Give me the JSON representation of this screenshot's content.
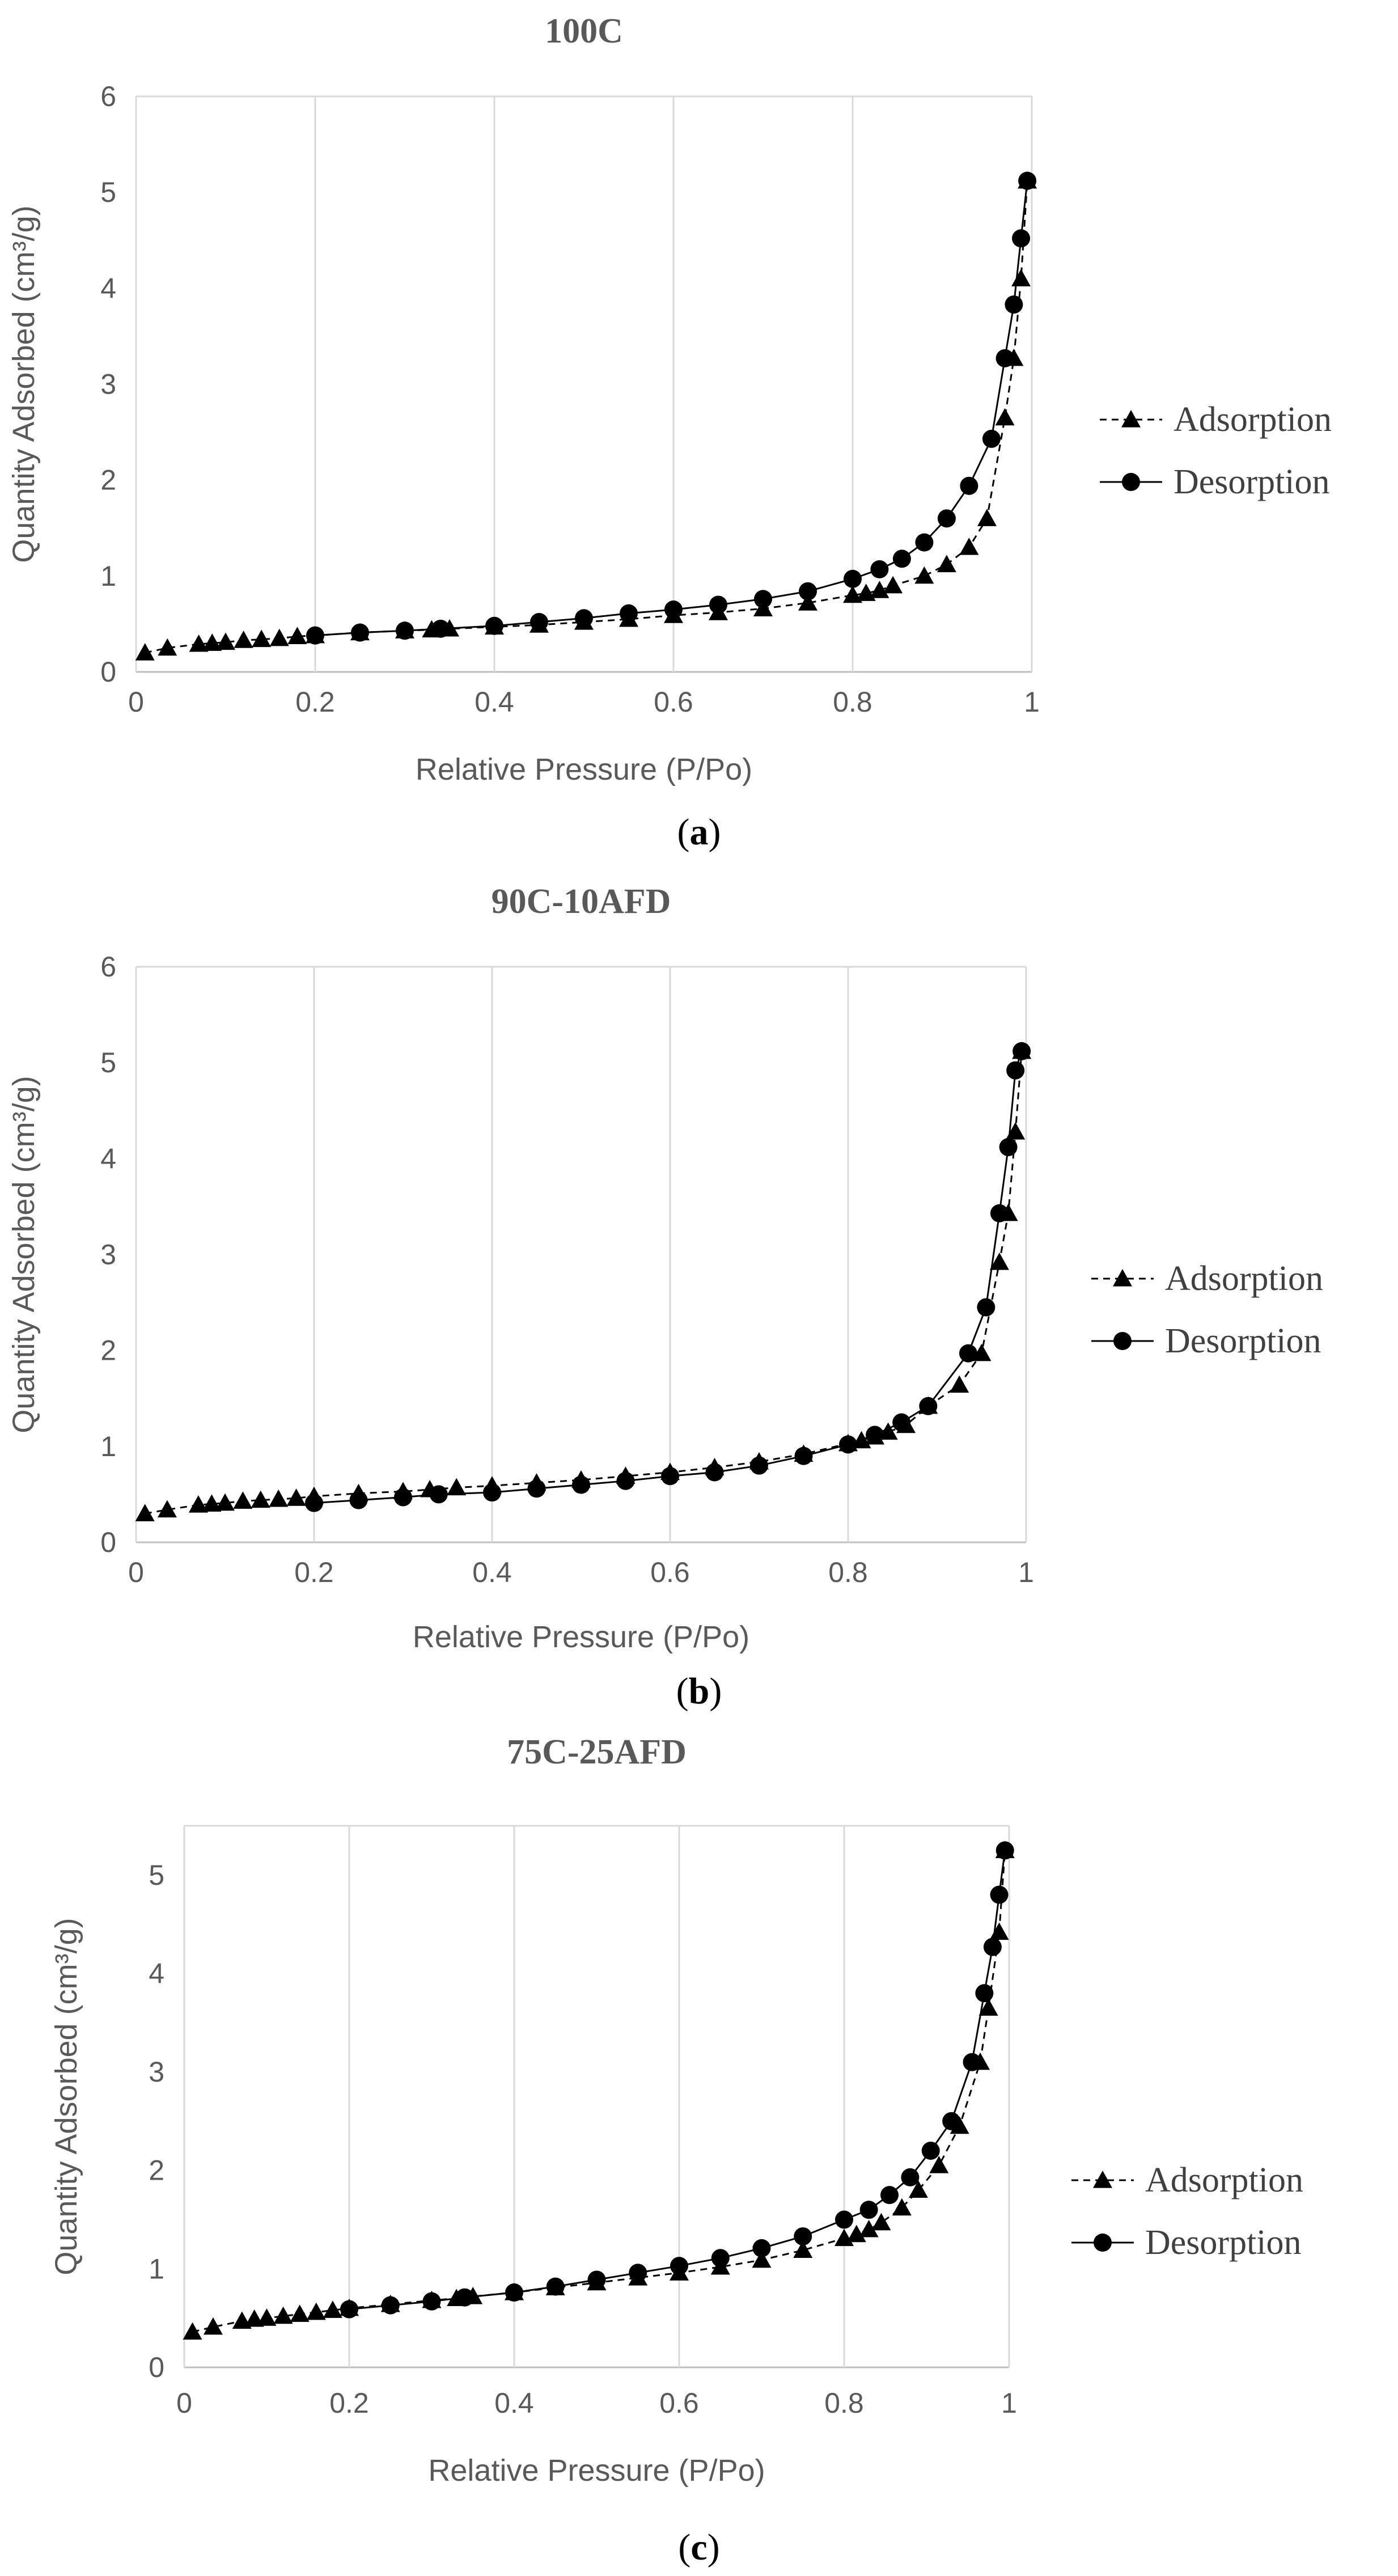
{
  "chart_data": [
    {
      "type": "line",
      "title": "100C",
      "caption": "a",
      "xlabel": "Relative Pressure (P/Po)",
      "ylabel": "Quantity Adsorbed (cm³/g)",
      "xlim": [
        0,
        1
      ],
      "ylim": [
        0,
        6
      ],
      "xticks": [
        "0",
        "0.2",
        "0.4",
        "0.6",
        "0.8",
        "1"
      ],
      "yticks": [
        "0",
        "1",
        "2",
        "3",
        "4",
        "5",
        "6"
      ],
      "grid": "vertical",
      "legend": "right",
      "series": [
        {
          "name": "Adsorption",
          "marker": "triangle",
          "line": "dashed",
          "points": [
            [
              0.01,
              0.2
            ],
            [
              0.035,
              0.25
            ],
            [
              0.07,
              0.29
            ],
            [
              0.085,
              0.3
            ],
            [
              0.1,
              0.31
            ],
            [
              0.12,
              0.33
            ],
            [
              0.14,
              0.34
            ],
            [
              0.16,
              0.35
            ],
            [
              0.18,
              0.37
            ],
            [
              0.2,
              0.38
            ],
            [
              0.25,
              0.41
            ],
            [
              0.3,
              0.43
            ],
            [
              0.33,
              0.44
            ],
            [
              0.35,
              0.45
            ],
            [
              0.4,
              0.47
            ],
            [
              0.45,
              0.49
            ],
            [
              0.5,
              0.52
            ],
            [
              0.55,
              0.55
            ],
            [
              0.6,
              0.59
            ],
            [
              0.65,
              0.62
            ],
            [
              0.7,
              0.66
            ],
            [
              0.75,
              0.72
            ],
            [
              0.8,
              0.8
            ],
            [
              0.815,
              0.82
            ],
            [
              0.83,
              0.85
            ],
            [
              0.845,
              0.9
            ],
            [
              0.88,
              1.0
            ],
            [
              0.905,
              1.12
            ],
            [
              0.93,
              1.3
            ],
            [
              0.95,
              1.6
            ],
            [
              0.97,
              2.65
            ],
            [
              0.98,
              3.27
            ],
            [
              0.988,
              4.1
            ],
            [
              0.995,
              5.12
            ]
          ]
        },
        {
          "name": "Desorption",
          "marker": "circle",
          "line": "solid",
          "points": [
            [
              0.995,
              5.12
            ],
            [
              0.988,
              4.52
            ],
            [
              0.98,
              3.83
            ],
            [
              0.97,
              3.27
            ],
            [
              0.955,
              2.43
            ],
            [
              0.93,
              1.94
            ],
            [
              0.905,
              1.6
            ],
            [
              0.88,
              1.35
            ],
            [
              0.855,
              1.18
            ],
            [
              0.83,
              1.07
            ],
            [
              0.8,
              0.97
            ],
            [
              0.75,
              0.84
            ],
            [
              0.7,
              0.76
            ],
            [
              0.65,
              0.7
            ],
            [
              0.6,
              0.65
            ],
            [
              0.55,
              0.61
            ],
            [
              0.5,
              0.56
            ],
            [
              0.45,
              0.52
            ],
            [
              0.4,
              0.48
            ],
            [
              0.34,
              0.45
            ],
            [
              0.3,
              0.43
            ],
            [
              0.25,
              0.41
            ],
            [
              0.2,
              0.38
            ]
          ]
        }
      ]
    },
    {
      "type": "line",
      "title": "90C-10AFD",
      "caption": "b",
      "xlabel": "Relative Pressure (P/Po)",
      "ylabel": "Quantity Adsorbed (cm³/g)",
      "xlim": [
        0,
        1
      ],
      "ylim": [
        0,
        6
      ],
      "xticks": [
        "0",
        "0.2",
        "0.4",
        "0.6",
        "0.8",
        "1"
      ],
      "yticks": [
        "0",
        "1",
        "2",
        "3",
        "4",
        "5",
        "6"
      ],
      "grid": "vertical",
      "legend": "right",
      "series": [
        {
          "name": "Adsorption",
          "marker": "triangle",
          "line": "dashed",
          "points": [
            [
              0.01,
              0.3
            ],
            [
              0.035,
              0.34
            ],
            [
              0.07,
              0.39
            ],
            [
              0.085,
              0.4
            ],
            [
              0.1,
              0.41
            ],
            [
              0.12,
              0.43
            ],
            [
              0.14,
              0.44
            ],
            [
              0.16,
              0.45
            ],
            [
              0.18,
              0.46
            ],
            [
              0.2,
              0.48
            ],
            [
              0.25,
              0.51
            ],
            [
              0.3,
              0.53
            ],
            [
              0.33,
              0.55
            ],
            [
              0.36,
              0.57
            ],
            [
              0.4,
              0.59
            ],
            [
              0.45,
              0.62
            ],
            [
              0.5,
              0.65
            ],
            [
              0.55,
              0.69
            ],
            [
              0.6,
              0.73
            ],
            [
              0.65,
              0.78
            ],
            [
              0.7,
              0.84
            ],
            [
              0.75,
              0.92
            ],
            [
              0.8,
              1.03
            ],
            [
              0.815,
              1.06
            ],
            [
              0.83,
              1.1
            ],
            [
              0.845,
              1.15
            ],
            [
              0.865,
              1.22
            ],
            [
              0.89,
              1.42
            ],
            [
              0.925,
              1.64
            ],
            [
              0.95,
              1.97
            ],
            [
              0.97,
              2.92
            ],
            [
              0.98,
              3.43
            ],
            [
              0.988,
              4.28
            ],
            [
              0.995,
              5.12
            ]
          ]
        },
        {
          "name": "Desorption",
          "marker": "circle",
          "line": "solid",
          "points": [
            [
              0.995,
              5.12
            ],
            [
              0.988,
              4.92
            ],
            [
              0.98,
              4.12
            ],
            [
              0.97,
              3.43
            ],
            [
              0.955,
              2.45
            ],
            [
              0.935,
              1.97
            ],
            [
              0.89,
              1.42
            ],
            [
              0.86,
              1.25
            ],
            [
              0.83,
              1.12
            ],
            [
              0.8,
              1.02
            ],
            [
              0.75,
              0.9
            ],
            [
              0.7,
              0.8
            ],
            [
              0.65,
              0.73
            ],
            [
              0.6,
              0.69
            ],
            [
              0.55,
              0.64
            ],
            [
              0.5,
              0.6
            ],
            [
              0.45,
              0.56
            ],
            [
              0.4,
              0.52
            ],
            [
              0.34,
              0.5
            ],
            [
              0.3,
              0.47
            ],
            [
              0.25,
              0.44
            ],
            [
              0.2,
              0.41
            ]
          ]
        }
      ]
    },
    {
      "type": "line",
      "title": "75C-25AFD",
      "caption": "c",
      "xlabel": "Relative Pressure (P/Po)",
      "ylabel": "Quantity Adsorbed (cm³/g)",
      "xlim": [
        0,
        1
      ],
      "ylim": [
        0,
        5.5
      ],
      "xticks": [
        "0",
        "0.2",
        "0.4",
        "0.6",
        "0.8",
        "1"
      ],
      "yticks": [
        "0",
        "1",
        "2",
        "3",
        "4",
        "5"
      ],
      "grid": "vertical",
      "legend": "right",
      "series": [
        {
          "name": "Adsorption",
          "marker": "triangle",
          "line": "dashed",
          "points": [
            [
              0.01,
              0.36
            ],
            [
              0.035,
              0.41
            ],
            [
              0.07,
              0.47
            ],
            [
              0.085,
              0.49
            ],
            [
              0.1,
              0.5
            ],
            [
              0.12,
              0.52
            ],
            [
              0.14,
              0.54
            ],
            [
              0.16,
              0.56
            ],
            [
              0.18,
              0.58
            ],
            [
              0.2,
              0.6
            ],
            [
              0.25,
              0.64
            ],
            [
              0.3,
              0.68
            ],
            [
              0.33,
              0.7
            ],
            [
              0.35,
              0.72
            ],
            [
              0.4,
              0.76
            ],
            [
              0.45,
              0.81
            ],
            [
              0.5,
              0.86
            ],
            [
              0.55,
              0.91
            ],
            [
              0.6,
              0.96
            ],
            [
              0.65,
              1.02
            ],
            [
              0.7,
              1.09
            ],
            [
              0.75,
              1.19
            ],
            [
              0.8,
              1.31
            ],
            [
              0.815,
              1.35
            ],
            [
              0.83,
              1.4
            ],
            [
              0.845,
              1.47
            ],
            [
              0.87,
              1.62
            ],
            [
              0.89,
              1.8
            ],
            [
              0.915,
              2.05
            ],
            [
              0.94,
              2.45
            ],
            [
              0.965,
              3.1
            ],
            [
              0.975,
              3.65
            ],
            [
              0.988,
              4.42
            ],
            [
              0.995,
              5.25
            ]
          ]
        },
        {
          "name": "Desorption",
          "marker": "circle",
          "line": "solid",
          "points": [
            [
              0.995,
              5.25
            ],
            [
              0.988,
              4.8
            ],
            [
              0.98,
              4.27
            ],
            [
              0.97,
              3.8
            ],
            [
              0.955,
              3.1
            ],
            [
              0.93,
              2.5
            ],
            [
              0.905,
              2.2
            ],
            [
              0.88,
              1.93
            ],
            [
              0.855,
              1.75
            ],
            [
              0.83,
              1.6
            ],
            [
              0.8,
              1.5
            ],
            [
              0.75,
              1.33
            ],
            [
              0.7,
              1.21
            ],
            [
              0.65,
              1.11
            ],
            [
              0.6,
              1.03
            ],
            [
              0.55,
              0.96
            ],
            [
              0.5,
              0.89
            ],
            [
              0.45,
              0.82
            ],
            [
              0.4,
              0.76
            ],
            [
              0.34,
              0.71
            ],
            [
              0.3,
              0.67
            ],
            [
              0.25,
              0.63
            ],
            [
              0.2,
              0.59
            ]
          ]
        }
      ]
    }
  ]
}
